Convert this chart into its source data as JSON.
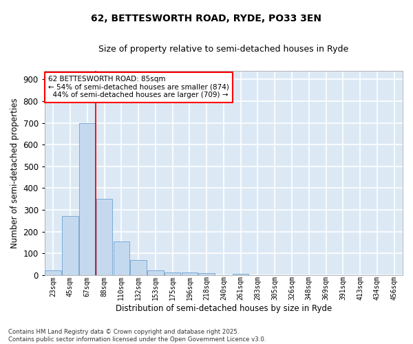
{
  "title1": "62, BETTESWORTH ROAD, RYDE, PO33 3EN",
  "title2": "Size of property relative to semi-detached houses in Ryde",
  "xlabel": "Distribution of semi-detached houses by size in Ryde",
  "ylabel": "Number of semi-detached properties",
  "categories": [
    "23sqm",
    "45sqm",
    "67sqm",
    "88sqm",
    "110sqm",
    "132sqm",
    "153sqm",
    "175sqm",
    "196sqm",
    "218sqm",
    "240sqm",
    "261sqm",
    "283sqm",
    "305sqm",
    "326sqm",
    "348sqm",
    "369sqm",
    "391sqm",
    "413sqm",
    "434sqm",
    "456sqm"
  ],
  "values": [
    20,
    270,
    700,
    350,
    155,
    68,
    22,
    12,
    12,
    8,
    0,
    5,
    0,
    0,
    0,
    0,
    0,
    0,
    0,
    0,
    0
  ],
  "bar_color": "#c5d9ee",
  "bar_edge_color": "#7aaad4",
  "red_line_x": 3.0,
  "smaller_pct": "54%",
  "smaller_count": 874,
  "larger_pct": "44%",
  "larger_count": 709,
  "property_size": "85sqm",
  "ylim": [
    0,
    940
  ],
  "yticks": [
    0,
    100,
    200,
    300,
    400,
    500,
    600,
    700,
    800,
    900
  ],
  "bg_color": "#dce9f5",
  "grid_color": "#ffffff",
  "fig_bg": "#ffffff",
  "footer": "Contains HM Land Registry data © Crown copyright and database right 2025.\nContains public sector information licensed under the Open Government Licence v3.0."
}
